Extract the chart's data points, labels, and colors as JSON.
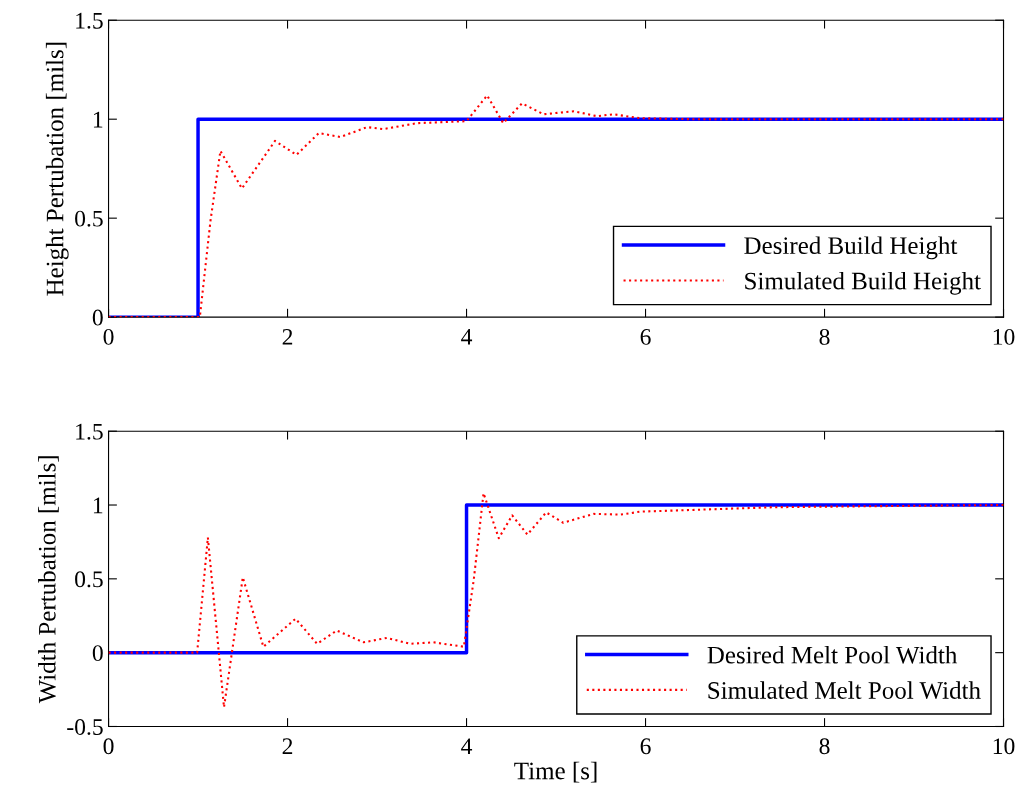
{
  "chart_data": [
    {
      "type": "line",
      "ylabel": "Height Pertubation [mils]",
      "xlim": [
        0,
        10
      ],
      "xticks": [
        0,
        2,
        4,
        6,
        8,
        10
      ],
      "ylim": [
        0,
        1.5
      ],
      "yticks": [
        0,
        0.5,
        1,
        1.5
      ],
      "grid": false,
      "legend": "lower right",
      "series": [
        {
          "name": "Desired Build Height",
          "color": "#0000ff",
          "line_style": "solid",
          "x": [
            0,
            1,
            1,
            10
          ],
          "values": [
            0,
            0,
            1,
            1
          ]
        },
        {
          "name": "Simulated Build Height",
          "color": "#ff0000",
          "line_style": "dotted",
          "x": [
            0,
            1.02,
            1.14,
            1.25,
            1.49,
            1.86,
            2.1,
            2.35,
            2.59,
            2.89,
            3.07,
            3.45,
            4.0,
            4.23,
            4.41,
            4.62,
            4.86,
            5.2,
            5.46,
            5.64,
            5.94,
            6.5,
            10
          ],
          "values": [
            0,
            0,
            0.49,
            0.84,
            0.65,
            0.89,
            0.82,
            0.93,
            0.91,
            0.96,
            0.95,
            0.98,
            0.99,
            1.12,
            0.98,
            1.08,
            1.025,
            1.04,
            1.015,
            1.025,
            1.005,
            1.0,
            1.0
          ]
        }
      ]
    },
    {
      "type": "line",
      "xlabel": "Time [s]",
      "ylabel": "Width Pertubation [mils]",
      "xlim": [
        0,
        10
      ],
      "xticks": [
        0,
        2,
        4,
        6,
        8,
        10
      ],
      "ylim": [
        -0.5,
        1.5
      ],
      "yticks": [
        -0.5,
        0,
        0.5,
        1,
        1.5
      ],
      "grid": false,
      "legend": "lower right",
      "series": [
        {
          "name": "Desired Melt Pool Width",
          "color": "#0000ff",
          "line_style": "solid",
          "x": [
            0,
            4,
            4,
            10
          ],
          "values": [
            0,
            0,
            1,
            1
          ]
        },
        {
          "name": "Simulated Melt Pool Width",
          "color": "#ff0000",
          "line_style": "dotted",
          "x": [
            0,
            0.99,
            1.11,
            1.29,
            1.5,
            1.73,
            2.09,
            2.33,
            2.55,
            2.85,
            3.11,
            3.37,
            3.63,
            3.97,
            4.08,
            4.19,
            4.36,
            4.51,
            4.68,
            4.89,
            5.08,
            5.42,
            5.72,
            5.94,
            6.69,
            7.43,
            8.18,
            10
          ],
          "values": [
            0,
            0,
            0.78,
            -0.37,
            0.51,
            0.04,
            0.23,
            0.06,
            0.15,
            0.07,
            0.1,
            0.06,
            0.07,
            0.04,
            0.49,
            1.08,
            0.775,
            0.93,
            0.8,
            0.95,
            0.88,
            0.94,
            0.935,
            0.955,
            0.97,
            0.985,
            0.99,
            1.0
          ]
        }
      ]
    }
  ]
}
